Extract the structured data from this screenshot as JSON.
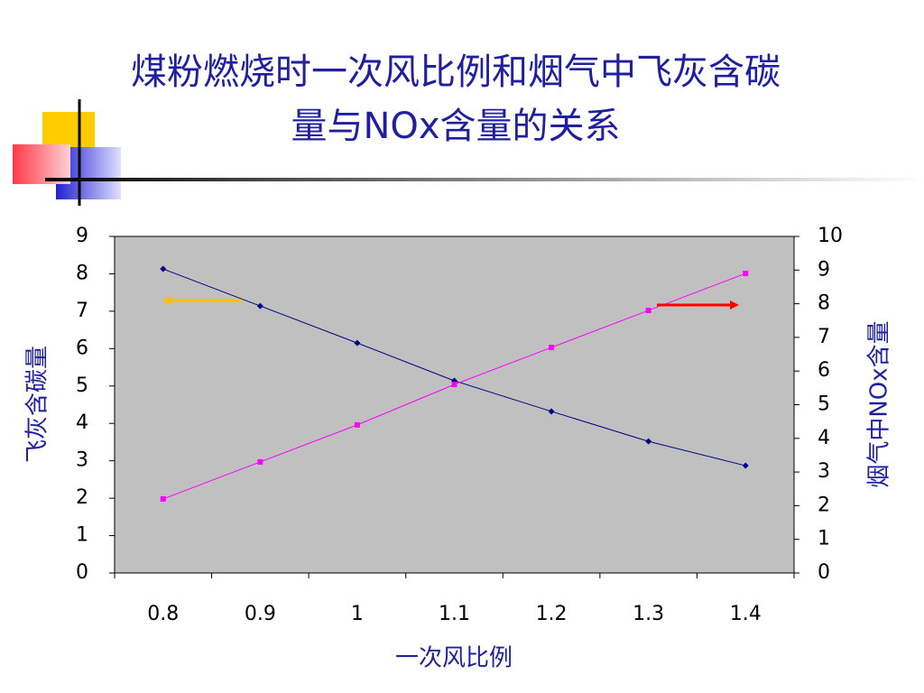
{
  "title_lines": [
    "煤粉燃烧时一次风比例和烟气中飞灰含碳",
    "量与NOx含量的关系"
  ],
  "chart_data": {
    "type": "line",
    "x_label": "一次风比例",
    "y_label": "飞灰含碳量",
    "y2_label": "烟气中NOx含量",
    "categories": [
      "0.8",
      "0.9",
      "1",
      "1.1",
      "1.2",
      "1.3",
      "1.4"
    ],
    "series": [
      {
        "color": "#000080",
        "values": [
          8.13,
          7.14,
          6.15,
          5.14,
          4.32,
          3.52,
          2.87
        ]
      },
      {
        "color": "#ff00ff",
        "axis": "y2",
        "values": [
          2.2,
          3.3,
          4.4,
          5.6,
          6.7,
          7.8,
          8.9
        ]
      }
    ],
    "ylim": [
      0,
      9
    ],
    "yticks": [
      0,
      1,
      2,
      3,
      4,
      5,
      6,
      7,
      8,
      9
    ],
    "y2lim": [
      0,
      10
    ],
    "y2ticks": [
      0,
      1,
      2,
      3,
      4,
      5,
      6,
      7,
      8,
      9,
      10
    ],
    "grid": false,
    "plot_background": "#c0c0c0"
  }
}
